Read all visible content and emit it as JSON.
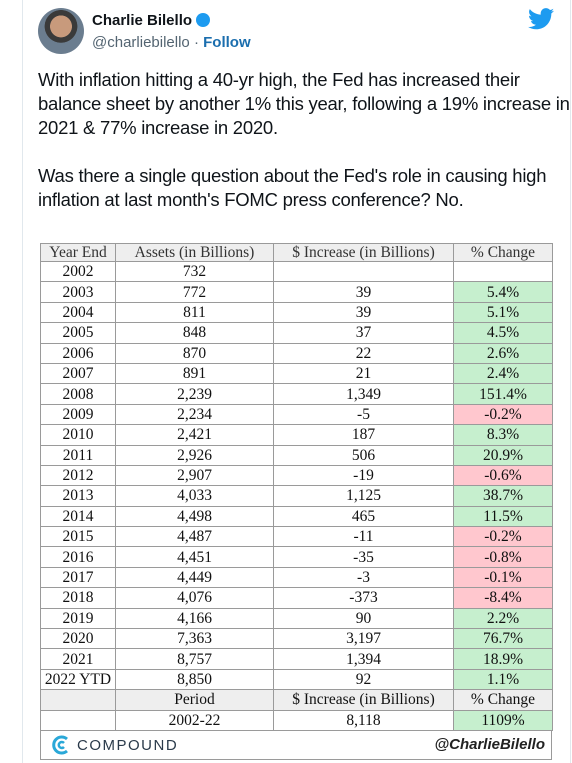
{
  "tweet": {
    "author": "Charlie Bilello",
    "handle": "@charliebilello",
    "follow": "Follow",
    "paragraphs": [
      "With inflation hitting a 40-yr high, the Fed has increased their balance sheet by another 1% this year, following a 19% increase in 2021 & 77% increase in 2020.",
      "Was there a single question about the Fed's role in causing high inflation at last month's FOMC press conference? No."
    ]
  },
  "table": {
    "header": [
      "Year End",
      "Assets (in Billions)",
      "$ Increase (in Billions)",
      "% Change"
    ],
    "rows": [
      [
        "2002",
        "732"
      ],
      [
        "2003",
        "772",
        "39",
        "5.4%"
      ],
      [
        "2004",
        "811",
        "39",
        "5.1%"
      ],
      [
        "2005",
        "848",
        "37",
        "4.5%"
      ],
      [
        "2006",
        "870",
        "22",
        "2.6%"
      ],
      [
        "2007",
        "891",
        "21",
        "2.4%"
      ],
      [
        "2008",
        "2,239",
        "1,349",
        "151.4%"
      ],
      [
        "2009",
        "2,234",
        "-5",
        "-0.2%"
      ],
      [
        "2010",
        "2,421",
        "187",
        "8.3%"
      ],
      [
        "2011",
        "2,926",
        "506",
        "20.9%"
      ],
      [
        "2012",
        "2,907",
        "-19",
        "-0.6%"
      ],
      [
        "2013",
        "4,033",
        "1,125",
        "38.7%"
      ],
      [
        "2014",
        "4,498",
        "465",
        "11.5%"
      ],
      [
        "2015",
        "4,487",
        "-11",
        "-0.2%"
      ],
      [
        "2016",
        "4,451",
        "-35",
        "-0.8%"
      ],
      [
        "2017",
        "4,449",
        "-3",
        "-0.1%"
      ],
      [
        "2018",
        "4,076",
        "-373",
        "-8.4%"
      ],
      [
        "2019",
        "4,166",
        "90",
        "2.2%"
      ],
      [
        "2020",
        "7,363",
        "3,197",
        "76.7%"
      ],
      [
        "2021",
        "8,757",
        "1,394",
        "18.9%"
      ],
      [
        "2022 YTD",
        "8,850",
        "92",
        "1.1%"
      ]
    ],
    "summary_header": [
      "Period",
      "$ Increase (in Billions)",
      "% Change"
    ],
    "summary_row": [
      "2002-22",
      "8,118",
      "1109%"
    ],
    "footer": {
      "brand": "COMPOUND",
      "credit": "@CharlieBilello"
    }
  }
}
